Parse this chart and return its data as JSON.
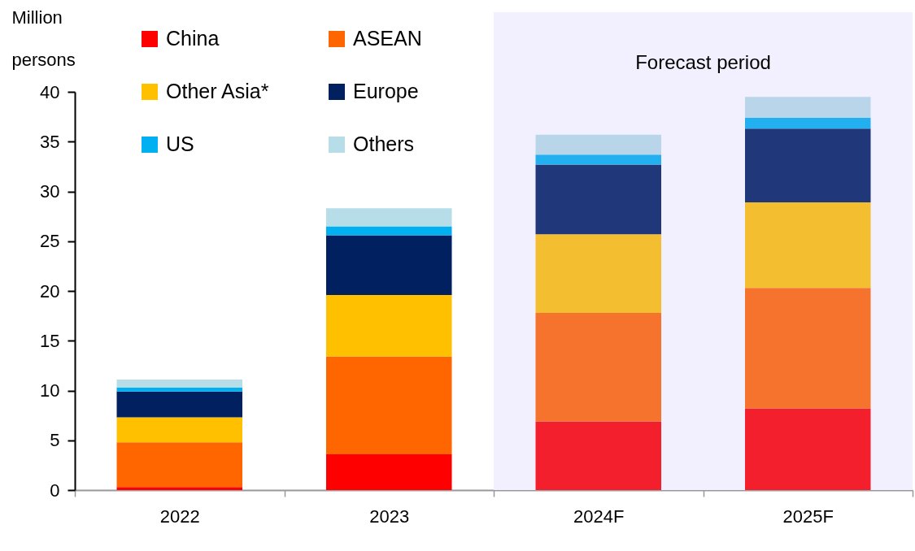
{
  "chart_data": {
    "type": "bar",
    "stacked": true,
    "ylabel": "Million persons",
    "categories": [
      "2022",
      "2023",
      "2024F",
      "2025F"
    ],
    "series": [
      {
        "name": "China",
        "color": "#ff0000",
        "colors": [
          "#ff0000",
          "#ff0000",
          "#f41f2d",
          "#f41f2d"
        ],
        "values": [
          0.3,
          3.6,
          6.9,
          8.2
        ]
      },
      {
        "name": "ASEAN",
        "color": "#ff6600",
        "colors": [
          "#ff6600",
          "#ff6600",
          "#f5732d",
          "#f5732d"
        ],
        "values": [
          4.5,
          9.8,
          10.9,
          12.1
        ]
      },
      {
        "name": "Other Asia*",
        "color": "#ffc000",
        "colors": [
          "#ffc000",
          "#ffc000",
          "#f3be2f",
          "#f3be2f"
        ],
        "values": [
          2.5,
          6.2,
          7.9,
          8.6
        ]
      },
      {
        "name": "Europe",
        "color": "#002060",
        "colors": [
          "#002060",
          "#002060",
          "#203879",
          "#203879"
        ],
        "values": [
          2.6,
          6.0,
          7.0,
          7.4
        ]
      },
      {
        "name": "US",
        "color": "#00b0f0",
        "colors": [
          "#00b0f0",
          "#00b0f0",
          "#22b0f1",
          "#22b0f1"
        ],
        "values": [
          0.4,
          0.9,
          1.0,
          1.1
        ]
      },
      {
        "name": "Others",
        "color": "#b7dde8",
        "colors": [
          "#b7dde8",
          "#b7dde8",
          "#b8d5ea",
          "#b8d5ea"
        ],
        "values": [
          0.8,
          1.8,
          2.0,
          2.1
        ]
      }
    ],
    "ylim": [
      0,
      40
    ],
    "yticks": [
      0,
      5,
      10,
      15,
      20,
      25,
      30,
      35,
      40
    ],
    "grid": false,
    "legend": "top left",
    "bands": [
      {
        "axis": "x",
        "from": "2024F",
        "to": "2025F",
        "label": "Forecast period",
        "color": "#f2f0fe"
      }
    ]
  }
}
